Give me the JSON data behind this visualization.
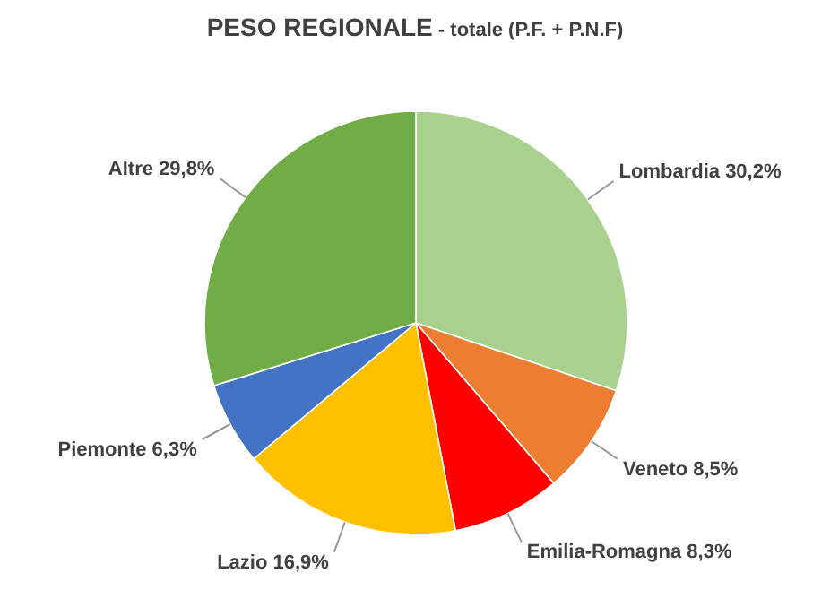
{
  "chart_data": {
    "type": "pie",
    "title": "PESO REGIONALE",
    "subtitle": "- totale (P.F. + P.N.F)",
    "categories": [
      "Lombardia",
      "Veneto",
      "Emilia-Romagna",
      "Lazio",
      "Piemonte",
      "Altre"
    ],
    "values": [
      30.2,
      8.5,
      8.3,
      16.9,
      6.3,
      29.8
    ],
    "value_labels": [
      "30,2%",
      "8,5%",
      "8,3%",
      "16,9%",
      "6,3%",
      "29,8%"
    ],
    "colors": [
      "#a9d18e",
      "#ed7d31",
      "#ff0000",
      "#ffc000",
      "#4472c4",
      "#70ad47"
    ]
  }
}
